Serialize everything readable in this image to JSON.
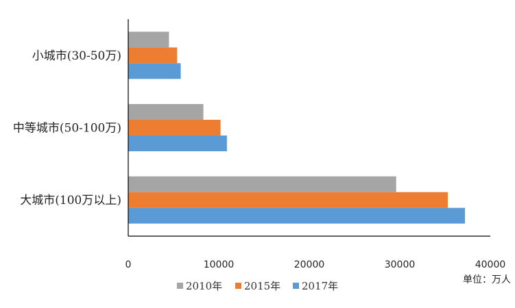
{
  "chart_data": {
    "type": "bar",
    "orientation": "horizontal",
    "categories": [
      "小城市(30-50万)",
      "中等城市(50-100万)",
      "大城市(100万以上)"
    ],
    "series": [
      {
        "name": "2010年",
        "color": "#a5a5a5",
        "values": [
          4500,
          8300,
          29600
        ]
      },
      {
        "name": "2015年",
        "color": "#ed7d31",
        "values": [
          5400,
          10200,
          35300
        ]
      },
      {
        "name": "2017年",
        "color": "#5b9bd5",
        "values": [
          5800,
          10900,
          37200
        ]
      }
    ],
    "xlim": [
      0,
      40000
    ],
    "xticks": [
      0,
      10000,
      20000,
      30000,
      40000
    ],
    "unit_label": "单位：万人",
    "grid": false,
    "legend_position": "bottom"
  }
}
